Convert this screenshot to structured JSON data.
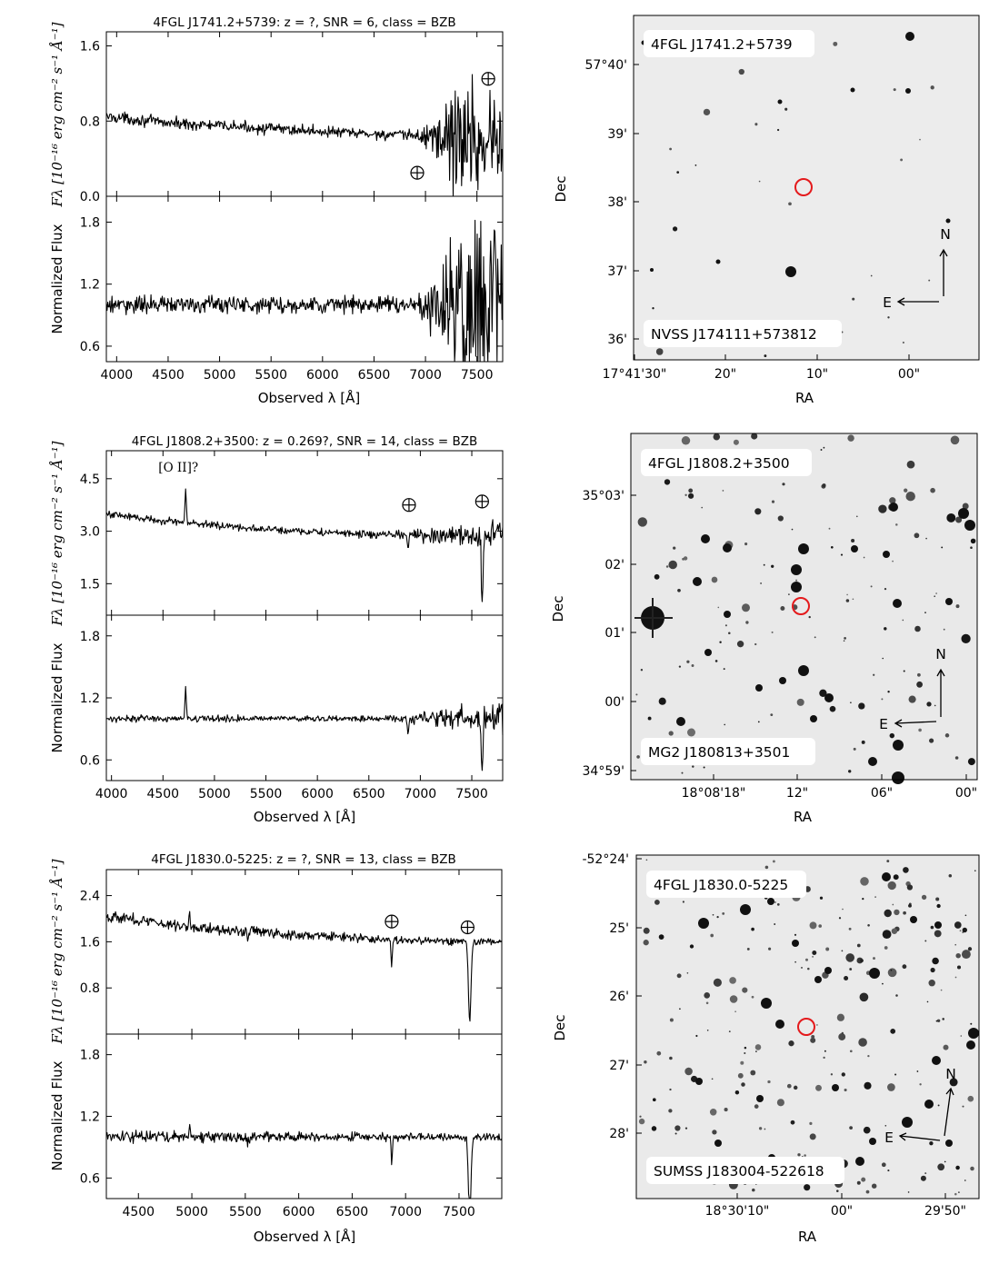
{
  "figure": {
    "panels": [
      {
        "spectrum": {
          "title": "4FGL J1741.2+5739: z = ?, SNR = 6, class = BZB",
          "xlabel": "Observed λ [Å]",
          "ylabel_top": "Fλ [10⁻¹⁶ erg cm⁻² s⁻¹ Å⁻¹]",
          "ylabel_bottom": "Normalized Flux",
          "annotation": null
        },
        "image": {
          "label_top": "4FGL J1741.2+5739",
          "label_bottom": "NVSS J174111+573812",
          "xlabel": "RA",
          "ylabel": "Dec",
          "ra_ticks": [
            "17°41'30\"",
            "20\"",
            "10\"",
            "00\""
          ],
          "dec_ticks": [
            "57°40'",
            "39'",
            "38'",
            "37'",
            "36'"
          ],
          "compass_n": "N",
          "compass_e": "E"
        }
      },
      {
        "spectrum": {
          "title": "4FGL J1808.2+3500: z = 0.269?, SNR = 14, class = BZB",
          "xlabel": "Observed λ [Å]",
          "ylabel_top": "Fλ [10⁻¹⁶ erg cm⁻² s⁻¹ Å⁻¹]",
          "ylabel_bottom": "Normalized Flux",
          "annotation": "[O II]?"
        },
        "image": {
          "label_top": "4FGL J1808.2+3500",
          "label_bottom": "MG2 J180813+3501",
          "xlabel": "RA",
          "ylabel": "Dec",
          "ra_ticks": [
            "18°08'18\"",
            "12\"",
            "06\"",
            "00\""
          ],
          "dec_ticks": [
            "35°03'",
            "02'",
            "01'",
            "00'",
            "34°59'"
          ],
          "compass_n": "N",
          "compass_e": "E"
        }
      },
      {
        "spectrum": {
          "title": "4FGL J1830.0-5225: z = ?, SNR = 13, class = BZB",
          "xlabel": "Observed λ [Å]",
          "ylabel_top": "Fλ [10⁻¹⁶ erg cm⁻² s⁻¹ Å⁻¹]",
          "ylabel_bottom": "Normalized Flux",
          "annotation": null
        },
        "image": {
          "label_top": "4FGL J1830.0-5225",
          "label_bottom": "SUMSS J183004-522618",
          "xlabel": "RA",
          "ylabel": "Dec",
          "ra_ticks": [
            "18°30'10\"",
            "00\"",
            "29'50\""
          ],
          "dec_ticks": [
            "-52°24'",
            "25'",
            "26'",
            "27'",
            "28'"
          ],
          "compass_n": "N",
          "compass_e": "E"
        }
      }
    ]
  },
  "chart_data": [
    {
      "type": "line",
      "title": "4FGL J1741.2+5739: z = ?, SNR = 6, class = BZB",
      "xlabel": "Observed λ [Å]",
      "xlim": [
        3900,
        7750
      ],
      "xticks": [
        4000,
        4500,
        5000,
        5500,
        6000,
        6500,
        7000,
        7500
      ],
      "top": {
        "ylabel": "Fλ [10⁻¹⁶ erg cm⁻² s⁻¹ Å⁻¹]",
        "ylim": [
          0.0,
          1.75
        ],
        "yticks": [
          0.0,
          0.8,
          1.6
        ],
        "continuum": {
          "x": [
            3900,
            4500,
            5500,
            6500,
            7000,
            7750
          ],
          "y": [
            0.85,
            0.78,
            0.72,
            0.66,
            0.64,
            0.6
          ]
        },
        "noise": [
          [
            3900,
            0.05
          ],
          [
            6900,
            0.05
          ],
          [
            7150,
            0.25
          ],
          [
            7250,
            0.5
          ],
          [
            7750,
            0.55
          ]
        ],
        "telluric_markers": [
          {
            "x": 6920,
            "y": 0.25
          },
          {
            "x": 7610,
            "y": 1.25
          }
        ]
      },
      "bottom": {
        "ylabel": "Normalized Flux",
        "ylim": [
          0.45,
          2.05
        ],
        "yticks": [
          0.6,
          1.2,
          1.8
        ],
        "continuum": {
          "x": [
            3900,
            7750
          ],
          "y": [
            1.0,
            1.0
          ]
        },
        "noise": [
          [
            3900,
            0.07
          ],
          [
            6900,
            0.07
          ],
          [
            7150,
            0.4
          ],
          [
            7250,
            0.75
          ],
          [
            7750,
            0.85
          ]
        ]
      }
    },
    {
      "type": "line",
      "title": "4FGL J1808.2+3500: z = 0.269?, SNR = 14, class = BZB",
      "xlabel": "Observed λ [Å]",
      "xlim": [
        3950,
        7800
      ],
      "xticks": [
        4000,
        4500,
        5000,
        5500,
        6000,
        6500,
        7000,
        7500
      ],
      "top": {
        "ylabel": "Fλ [10⁻¹⁶ erg cm⁻² s⁻¹ Å⁻¹]",
        "ylim": [
          0.6,
          5.3
        ],
        "yticks": [
          1.5,
          3.0,
          4.5
        ],
        "continuum": {
          "x": [
            3950,
            4500,
            5500,
            6500,
            7000,
            7800
          ],
          "y": [
            3.5,
            3.3,
            3.05,
            2.9,
            2.9,
            2.9
          ]
        },
        "noise": [
          [
            3950,
            0.09
          ],
          [
            6800,
            0.09
          ],
          [
            7100,
            0.25
          ],
          [
            7800,
            0.35
          ]
        ],
        "emission": [
          {
            "x": 4720,
            "amp": 1.0,
            "sigma": 6
          }
        ],
        "absorption": [
          {
            "x": 6880,
            "amp": 0.5,
            "sigma": 6
          },
          {
            "x": 7600,
            "amp": 2.0,
            "sigma": 8
          }
        ],
        "telluric_markers": [
          {
            "x": 6890,
            "y": 3.75
          },
          {
            "x": 7600,
            "y": 3.85
          }
        ],
        "annotation": {
          "text": "[O II]?",
          "x": 4720,
          "y": 4.7
        }
      },
      "bottom": {
        "ylabel": "Normalized Flux",
        "ylim": [
          0.4,
          2.0
        ],
        "yticks": [
          0.6,
          1.2,
          1.8
        ],
        "continuum": {
          "x": [
            3950,
            7800
          ],
          "y": [
            1.0,
            1.0
          ]
        },
        "noise": [
          [
            3950,
            0.025
          ],
          [
            6800,
            0.025
          ],
          [
            7100,
            0.08
          ],
          [
            7800,
            0.12
          ]
        ],
        "emission": [
          {
            "x": 4720,
            "amp": 0.3,
            "sigma": 6
          }
        ],
        "absorption": [
          {
            "x": 6880,
            "amp": 0.15,
            "sigma": 6
          },
          {
            "x": 7600,
            "amp": 0.6,
            "sigma": 8
          }
        ]
      }
    },
    {
      "type": "line",
      "title": "4FGL J1830.0-5225: z = ?, SNR = 13, class = BZB",
      "xlabel": "Observed λ [Å]",
      "xlim": [
        4200,
        7900
      ],
      "xticks": [
        4500,
        5000,
        5500,
        6000,
        6500,
        7000,
        7500
      ],
      "top": {
        "ylabel": "Fλ [10⁻¹⁶ erg cm⁻² s⁻¹ Å⁻¹]",
        "ylim": [
          0.0,
          2.85
        ],
        "yticks": [
          0.8,
          1.6,
          2.4
        ],
        "continuum": {
          "x": [
            4200,
            5000,
            6000,
            7000,
            7900
          ],
          "y": [
            2.05,
            1.85,
            1.72,
            1.62,
            1.6
          ]
        },
        "noise": [
          [
            4200,
            0.09
          ],
          [
            7900,
            0.05
          ]
        ],
        "emission": [
          {
            "x": 4980,
            "amp": 0.3,
            "sigma": 5
          }
        ],
        "absorption": [
          {
            "x": 6870,
            "amp": 0.45,
            "sigma": 6
          },
          {
            "x": 7600,
            "amp": 1.4,
            "sigma": 12
          },
          {
            "x": 5520,
            "amp": 0.2,
            "sigma": 4
          }
        ],
        "telluric_markers": [
          {
            "x": 6870,
            "y": 1.95
          },
          {
            "x": 7580,
            "y": 1.85
          }
        ]
      },
      "bottom": {
        "ylabel": "Normalized Flux",
        "ylim": [
          0.4,
          2.0
        ],
        "yticks": [
          0.6,
          1.2,
          1.8
        ],
        "continuum": {
          "x": [
            4200,
            7900
          ],
          "y": [
            1.0,
            1.0
          ]
        },
        "noise": [
          [
            4200,
            0.05
          ],
          [
            7900,
            0.03
          ]
        ],
        "emission": [
          {
            "x": 4980,
            "amp": 0.15,
            "sigma": 5
          }
        ],
        "absorption": [
          {
            "x": 6870,
            "amp": 0.25,
            "sigma": 6
          },
          {
            "x": 7600,
            "amp": 0.8,
            "sigma": 12
          },
          {
            "x": 5520,
            "amp": 0.1,
            "sigma": 4
          }
        ]
      }
    }
  ]
}
